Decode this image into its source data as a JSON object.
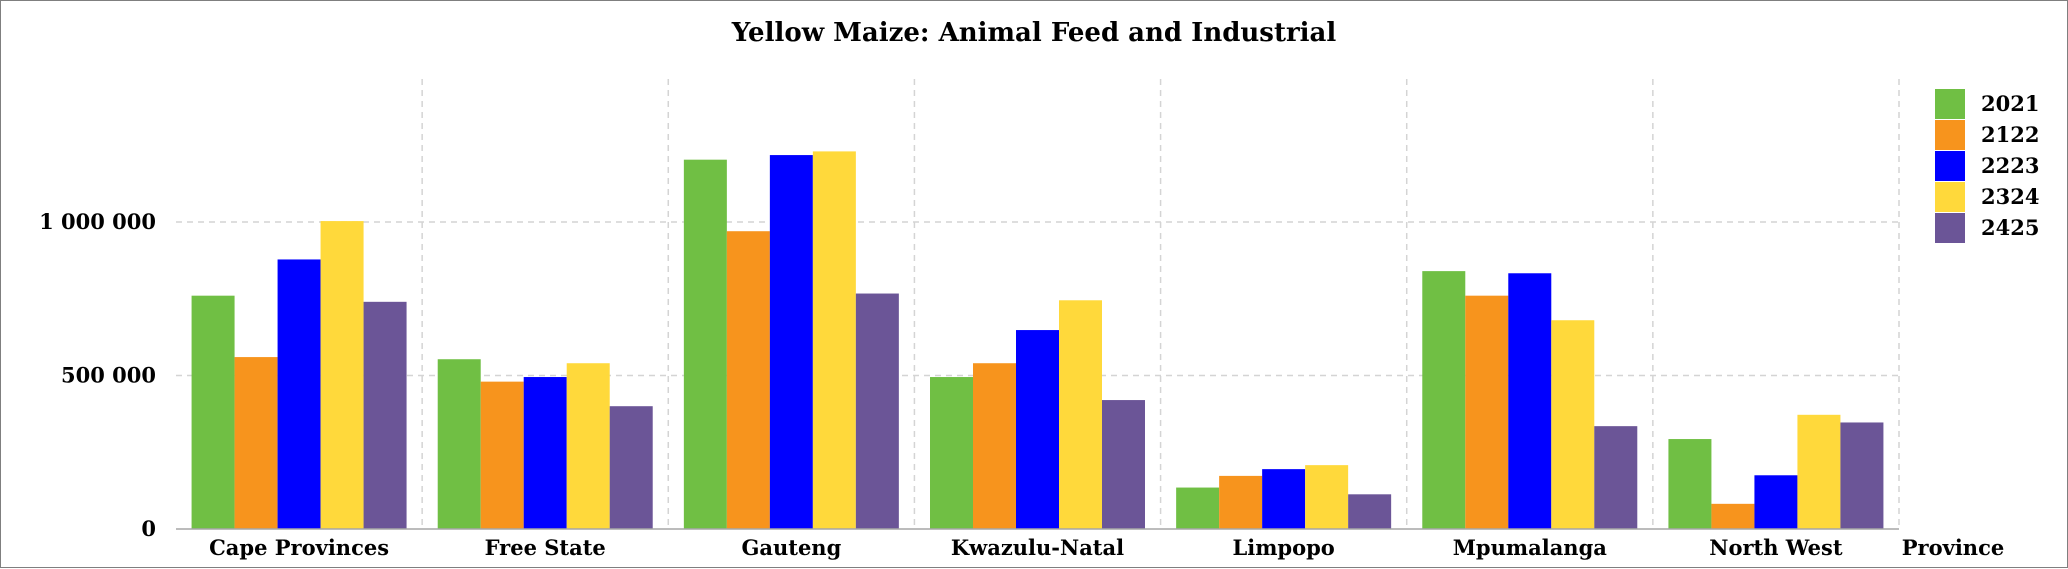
{
  "chart_data": {
    "type": "bar",
    "title": "Yellow Maize: Animal Feed and Industrial",
    "xlabel": "Province",
    "ylabel": "",
    "categories": [
      "Cape Provinces",
      "Free State",
      "Gauteng",
      "Kwazulu-Natal",
      "Limpopo",
      "Mpumalanga",
      "North West"
    ],
    "series": [
      {
        "name": "2021",
        "color": "#70bf44",
        "values": [
          760000,
          553000,
          1203000,
          495000,
          135000,
          840000,
          293000
        ]
      },
      {
        "name": "2122",
        "color": "#f7941d",
        "values": [
          560000,
          480000,
          970000,
          540000,
          173000,
          760000,
          82000
        ]
      },
      {
        "name": "2223",
        "color": "#0000ff",
        "values": [
          878000,
          495000,
          1218000,
          648000,
          195000,
          833000,
          175000
        ]
      },
      {
        "name": "2324",
        "color": "#ffd93b",
        "values": [
          1003000,
          540000,
          1230000,
          745000,
          208000,
          680000,
          372000
        ]
      },
      {
        "name": "2425",
        "color": "#6b5597",
        "values": [
          740000,
          400000,
          767000,
          420000,
          113000,
          335000,
          347000
        ]
      }
    ],
    "yticks": [
      {
        "value": 0,
        "label": "0"
      },
      {
        "value": 500000,
        "label": "500 000"
      },
      {
        "value": 1000000,
        "label": "1 000 000"
      }
    ],
    "ylim": [
      0,
      1470000
    ],
    "grid": true,
    "legend_position": "right"
  }
}
